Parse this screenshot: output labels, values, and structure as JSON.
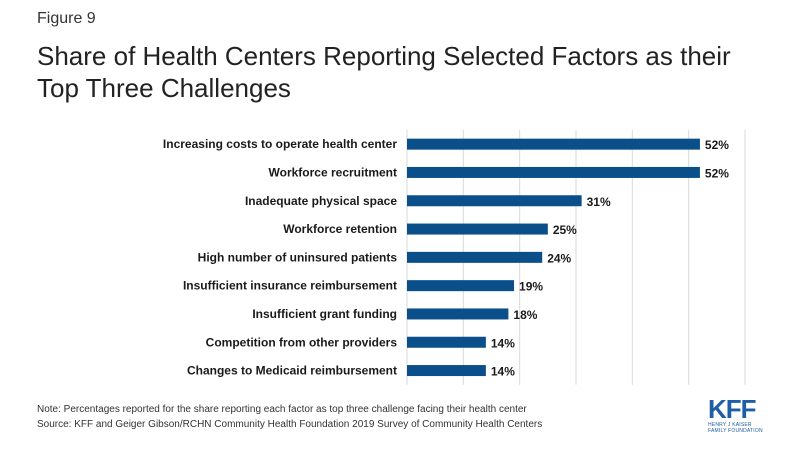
{
  "figure_label": "Figure 9",
  "note": "Note: Percentages reported  for the share reporting each factor as top three challenge facing their health center",
  "source": "Source: KFF and Geiger Gibson/RCHN Community Health Foundation 2019 Survey of Community Health Centers",
  "logo": {
    "main": "KFF",
    "line1": "HENRY J KAISER",
    "line2": "FAMILY FOUNDATION"
  },
  "colors": {
    "bar": "#0b4f8a",
    "grid": "#d9d9d9"
  },
  "chart_data": {
    "type": "bar",
    "orientation": "horizontal",
    "title": "Share of Health Centers Reporting Selected Factors as their Top Three Challenges",
    "categories": [
      "Increasing costs to operate health center",
      "Workforce recruitment",
      "Inadequate physical space",
      "Workforce retention",
      "High number of uninsured patients",
      "Insufficient insurance reimbursement",
      "Insufficient grant funding",
      "Competition from other providers",
      "Changes to Medicaid reimbursement"
    ],
    "values": [
      52,
      52,
      31,
      25,
      24,
      19,
      18,
      14,
      14
    ],
    "value_labels": [
      "52%",
      "52%",
      "31%",
      "25%",
      "24%",
      "19%",
      "18%",
      "14%",
      "14%"
    ],
    "xlim": [
      0,
      60
    ],
    "grid": true,
    "xlabel": "",
    "ylabel": ""
  }
}
